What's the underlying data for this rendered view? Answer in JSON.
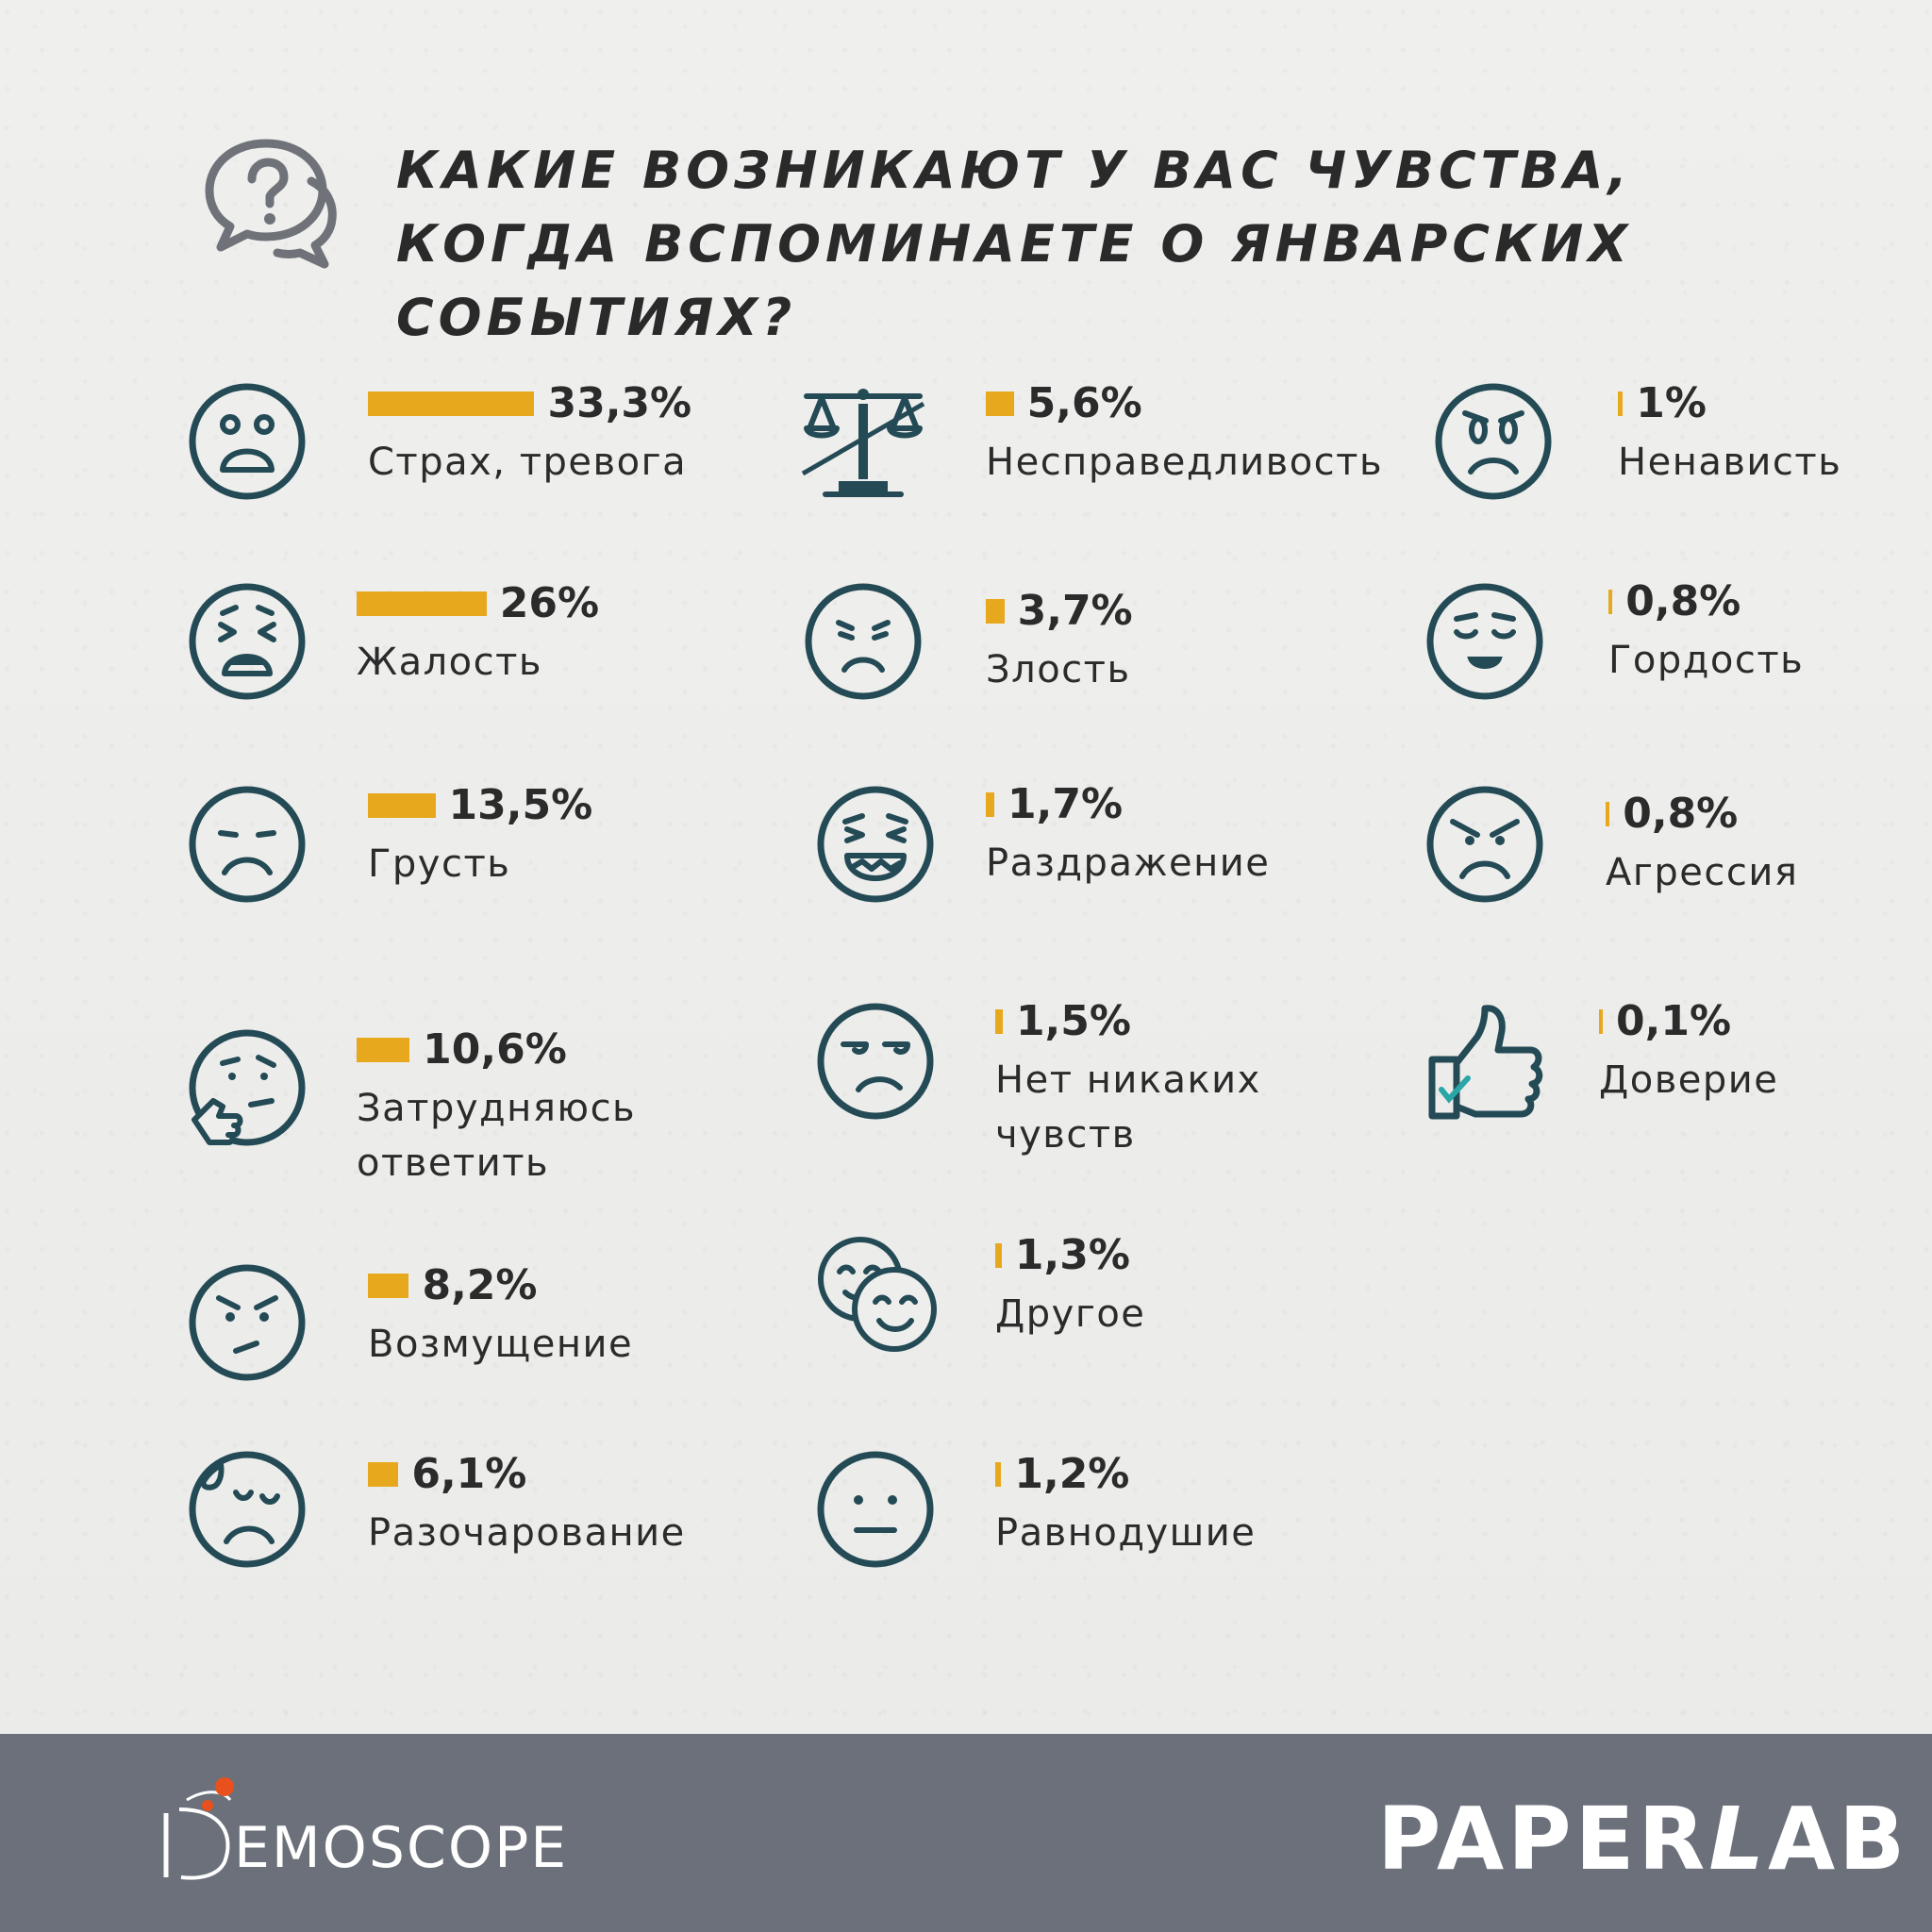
{
  "title": "КАКИЕ ВОЗНИКАЮТ У ВАС ЧУВСТВА, КОГДА ВСПОМИНАЕТЕ О ЯНВАРСКИХ СОБЫТИЯХ?",
  "colors": {
    "bar": "#e8a81e",
    "icon": "#234a55",
    "footer": "#6b707a",
    "accent_dot": "#e8501e"
  },
  "chart_data": {
    "type": "bar",
    "unit": "%",
    "categories": [
      "Страх, тревога",
      "Жалость",
      "Грусть",
      "Затрудняюсь ответить",
      "Возмущение",
      "Разочарование",
      "Несправедливость",
      "Злость",
      "Раздражение",
      "Нет никаких чувств",
      "Другое",
      "Равнодушие",
      "Ненависть",
      "Гордость",
      "Агрессия",
      "Доверие"
    ],
    "values": [
      33.3,
      26,
      13.5,
      10.6,
      8.2,
      6.1,
      5.6,
      3.7,
      1.7,
      1.5,
      1.3,
      1.2,
      1,
      0.8,
      0.8,
      0.1
    ]
  },
  "items": [
    {
      "label": "Страх, тревога",
      "value_text": "33,3%",
      "icon": "fear-face-icon"
    },
    {
      "label": "Жалость",
      "value_text": "26%",
      "icon": "distressed-face-icon"
    },
    {
      "label": "Грусть",
      "value_text": "13,5%",
      "icon": "sad-face-icon"
    },
    {
      "label": "Затрудняюсь ответить",
      "value_text": "10,6%",
      "icon": "thinking-face-icon"
    },
    {
      "label": "Возмущение",
      "value_text": "8,2%",
      "icon": "indignant-face-icon"
    },
    {
      "label": "Разочарование",
      "value_text": "6,1%",
      "icon": "disappointed-face-icon"
    },
    {
      "label": "Несправедливость",
      "value_text": "5,6%",
      "icon": "crossed-scales-icon"
    },
    {
      "label": "Злость",
      "value_text": "3,7%",
      "icon": "angry-face-icon"
    },
    {
      "label": "Раздражение",
      "value_text": "1,7%",
      "icon": "irritated-face-icon"
    },
    {
      "label": "Нет никаких чувств",
      "value_text": "1,5%",
      "icon": "unamused-face-icon"
    },
    {
      "label": "Другое",
      "value_text": "1,3%",
      "icon": "two-faces-icon"
    },
    {
      "label": "Равнодушие",
      "value_text": "1,2%",
      "icon": "neutral-face-icon"
    },
    {
      "label": "Ненависть",
      "value_text": "1%",
      "icon": "hateful-face-icon"
    },
    {
      "label": "Гордость",
      "value_text": "0,8%",
      "icon": "proud-face-icon"
    },
    {
      "label": "Агрессия",
      "value_text": "0,8%",
      "icon": "aggressive-face-icon"
    },
    {
      "label": "Доверие",
      "value_text": "0,1%",
      "icon": "thumbs-up-icon"
    }
  ],
  "footer": {
    "demoscope_logo": "DEMOSCOPE",
    "paperlab_logo": "PAPERLAB"
  }
}
